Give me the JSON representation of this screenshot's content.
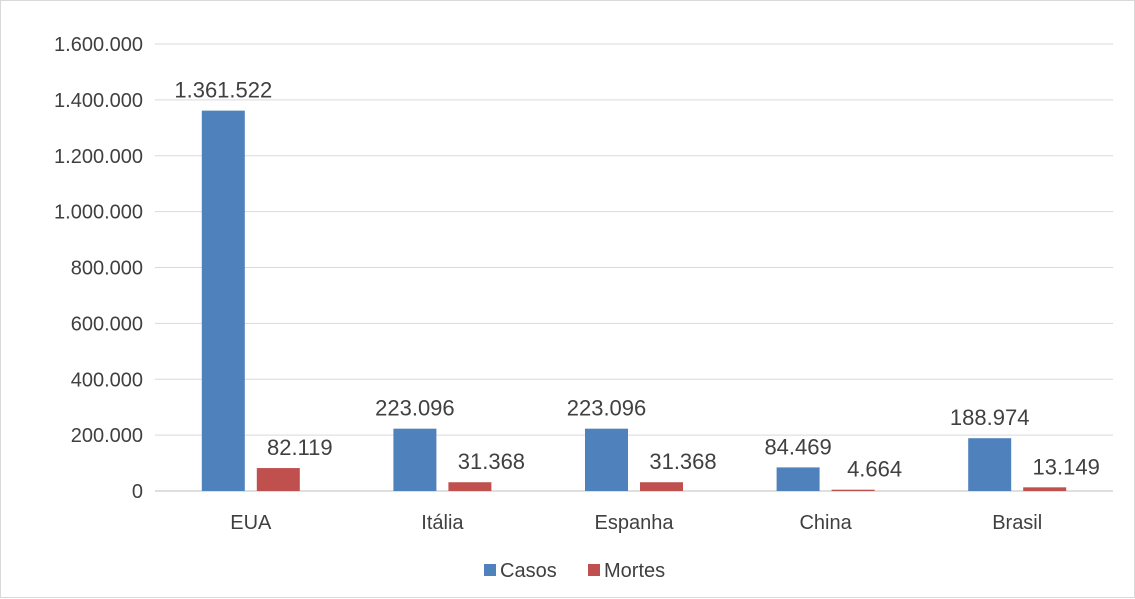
{
  "chart_data": {
    "type": "bar",
    "title": "",
    "xlabel": "",
    "ylabel": "",
    "categories": [
      "EUA",
      "Itália",
      "Espanha",
      "China",
      "Brasil"
    ],
    "series": [
      {
        "name": "Casos",
        "color": "#4f81bd",
        "values": [
          1361522,
          223096,
          223096,
          84469,
          188974
        ],
        "labels": [
          "1.361.522",
          "223.096",
          "223.096",
          "84.469",
          "188.974"
        ]
      },
      {
        "name": "Mortes",
        "color": "#c0504d",
        "values": [
          82119,
          31368,
          31368,
          4664,
          13149
        ],
        "labels": [
          "82.119",
          "31.368",
          "31.368",
          "4.664",
          "13.149"
        ]
      }
    ],
    "ylim": [
      0,
      1600000
    ],
    "yticks": [
      0,
      200000,
      400000,
      600000,
      800000,
      1000000,
      1200000,
      1400000,
      1600000
    ],
    "ytick_labels": [
      "0",
      "200.000",
      "400.000",
      "600.000",
      "800.000",
      "1.000.000",
      "1.200.000",
      "1.400.000",
      "1.600.000"
    ],
    "grid": true,
    "legend": "bottom"
  }
}
